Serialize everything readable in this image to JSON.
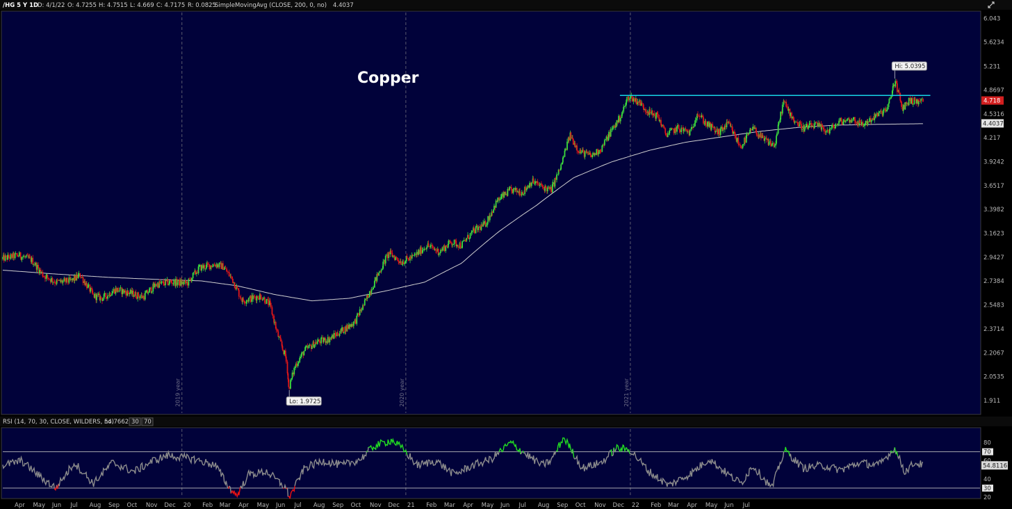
{
  "header": {
    "symbol": "/HG 5 Y 1D",
    "date": "D: 4/1/22",
    "open": "O: 4.7255",
    "high": "H: 4.7515",
    "low": "L: 4.669",
    "close": "C: 4.7175",
    "range": "R: 0.0825",
    "study": "SimpleMovingAvg (CLOSE, 200, 0, no)",
    "study_value": "4.4037"
  },
  "rsi_header": {
    "study": "RSI (14, 70, 30, CLOSE, WILDERS, no)",
    "value": "54.7662",
    "ob_box": "30",
    "os_box": "70"
  },
  "colors": {
    "background": "#000000",
    "plot_bg": "#01023a",
    "up": "#3ddc3d",
    "down": "#e01818",
    "sma": "#cfcfcf",
    "resistance": "#17d4e6",
    "rsi_line": "#8c8c8c",
    "rsi_ob": "#22dd22",
    "rsi_os": "#ee1111",
    "last_price_tag": "#d31f1f"
  },
  "icons": {
    "settings": "expand-arrows-icon"
  },
  "chart_data": [
    {
      "type": "candlestick",
      "title": "Copper",
      "symbol": "/HG",
      "y_ticks": [
        6.043,
        5.6234,
        5.231,
        4.8697,
        4.5316,
        4.217,
        3.9242,
        3.6517,
        3.3982,
        3.1623,
        2.9427,
        2.7384,
        2.5483,
        2.3714,
        2.2067,
        2.0535,
        1.911
      ],
      "y_tick_labels": [
        "6.043",
        "5.6234",
        "5.231",
        "4.8697",
        "4.5316",
        "4.217",
        "3.9242",
        "3.6517",
        "3.3982",
        "3.1623",
        "2.9427",
        "2.7384",
        "2.5483",
        "2.3714",
        "2.2067",
        "2.0535",
        "1.911"
      ],
      "y_scale": "log",
      "ylim": [
        1.84,
        6.15
      ],
      "x_range": [
        "2018-03-15",
        "2022-07-25"
      ],
      "year_markers": [
        {
          "date": "2019-01-01",
          "label": "2019 year"
        },
        {
          "date": "2020-01-01",
          "label": "2020 year"
        },
        {
          "date": "2021-01-01",
          "label": "2021 year"
        }
      ],
      "x_month_labels": [
        {
          "date": "2018-04-01",
          "label": "Apr"
        },
        {
          "date": "2018-05-01",
          "label": "May"
        },
        {
          "date": "2018-06-01",
          "label": "Jun"
        },
        {
          "date": "2018-07-01",
          "label": "Jul"
        },
        {
          "date": "2018-08-01",
          "label": "Aug"
        },
        {
          "date": "2018-09-01",
          "label": "Sep"
        },
        {
          "date": "2018-10-01",
          "label": "Oct"
        },
        {
          "date": "2018-11-01",
          "label": "Nov"
        },
        {
          "date": "2018-12-01",
          "label": "Dec"
        },
        {
          "date": "2019-01-01",
          "label": "20"
        },
        {
          "date": "2019-02-01",
          "label": "Feb"
        },
        {
          "date": "2019-03-01",
          "label": "Mar"
        },
        {
          "date": "2019-04-01",
          "label": "Apr"
        },
        {
          "date": "2019-05-01",
          "label": "May"
        },
        {
          "date": "2019-06-01",
          "label": "Jun"
        },
        {
          "date": "2019-07-01",
          "label": "Jul"
        },
        {
          "date": "2019-08-01",
          "label": "Aug"
        },
        {
          "date": "2019-09-01",
          "label": "Sep"
        },
        {
          "date": "2019-10-01",
          "label": "Oct"
        },
        {
          "date": "2019-11-01",
          "label": "Nov"
        },
        {
          "date": "2019-12-01",
          "label": "Dec"
        },
        {
          "date": "2020-01-01",
          "label": "21"
        },
        {
          "date": "2020-02-01",
          "label": "Feb"
        },
        {
          "date": "2020-03-01",
          "label": "Mar"
        },
        {
          "date": "2020-04-01",
          "label": "Apr"
        },
        {
          "date": "2020-05-01",
          "label": "May"
        },
        {
          "date": "2020-06-01",
          "label": "Jun"
        },
        {
          "date": "2020-07-01",
          "label": "Jul"
        },
        {
          "date": "2020-08-01",
          "label": "Aug"
        },
        {
          "date": "2020-09-01",
          "label": "Sep"
        },
        {
          "date": "2020-10-01",
          "label": "Oct"
        },
        {
          "date": "2020-11-01",
          "label": "Nov"
        },
        {
          "date": "2020-12-01",
          "label": "Dec"
        },
        {
          "date": "2021-01-01",
          "label": "22"
        },
        {
          "date": "2021-02-01",
          "label": "Feb"
        },
        {
          "date": "2021-03-01",
          "label": "Mar"
        },
        {
          "date": "2021-04-01",
          "label": "Apr"
        },
        {
          "date": "2021-05-01",
          "label": "May"
        },
        {
          "date": "2021-06-01",
          "label": "Jun"
        },
        {
          "date": "2021-07-01",
          "label": "Jul"
        }
      ],
      "price_path": [
        [
          "2018-03-15",
          2.93
        ],
        [
          "2018-04-10",
          2.96
        ],
        [
          "2018-05-01",
          2.92
        ],
        [
          "2018-05-20",
          2.79
        ],
        [
          "2018-06-10",
          2.73
        ],
        [
          "2018-07-05",
          2.74
        ],
        [
          "2018-07-20",
          2.79
        ],
        [
          "2018-08-10",
          2.62
        ],
        [
          "2018-08-25",
          2.6
        ],
        [
          "2018-09-15",
          2.67
        ],
        [
          "2018-10-10",
          2.64
        ],
        [
          "2018-10-30",
          2.61
        ],
        [
          "2018-11-20",
          2.71
        ],
        [
          "2018-12-15",
          2.73
        ],
        [
          "2019-01-10",
          2.72
        ],
        [
          "2019-01-30",
          2.85
        ],
        [
          "2019-02-25",
          2.88
        ],
        [
          "2019-03-10",
          2.86
        ],
        [
          "2019-03-25",
          2.75
        ],
        [
          "2019-04-10",
          2.58
        ],
        [
          "2019-04-25",
          2.6
        ],
        [
          "2019-05-10",
          2.62
        ],
        [
          "2019-05-25",
          2.55
        ],
        [
          "2019-06-05",
          2.35
        ],
        [
          "2019-06-20",
          2.17
        ],
        [
          "2019-06-25",
          1.98
        ],
        [
          "2019-07-05",
          2.12
        ],
        [
          "2019-07-20",
          2.22
        ],
        [
          "2019-08-10",
          2.28
        ],
        [
          "2019-08-30",
          2.3
        ],
        [
          "2019-09-20",
          2.36
        ],
        [
          "2019-10-10",
          2.42
        ],
        [
          "2019-10-25",
          2.55
        ],
        [
          "2019-11-15",
          2.77
        ],
        [
          "2019-12-05",
          2.98
        ],
        [
          "2019-12-25",
          2.9
        ],
        [
          "2020-01-15",
          2.95
        ],
        [
          "2020-02-05",
          3.05
        ],
        [
          "2020-02-25",
          2.99
        ],
        [
          "2020-03-15",
          3.08
        ],
        [
          "2020-04-01",
          3.05
        ],
        [
          "2020-04-20",
          3.18
        ],
        [
          "2020-05-10",
          3.25
        ],
        [
          "2020-05-30",
          3.49
        ],
        [
          "2020-06-20",
          3.6
        ],
        [
          "2020-07-10",
          3.58
        ],
        [
          "2020-07-25",
          3.7
        ],
        [
          "2020-08-10",
          3.64
        ],
        [
          "2020-08-25",
          3.6
        ],
        [
          "2020-09-10",
          3.86
        ],
        [
          "2020-09-25",
          4.25
        ],
        [
          "2020-10-10",
          4.05
        ],
        [
          "2020-10-30",
          3.99
        ],
        [
          "2020-11-15",
          4.08
        ],
        [
          "2020-12-01",
          4.3
        ],
        [
          "2020-12-15",
          4.47
        ],
        [
          "2020-12-30",
          4.78
        ],
        [
          "2021-01-15",
          4.7
        ],
        [
          "2021-02-01",
          4.55
        ],
        [
          "2021-02-15",
          4.5
        ],
        [
          "2021-02-28",
          4.26
        ],
        [
          "2021-03-20",
          4.34
        ],
        [
          "2021-04-10",
          4.28
        ],
        [
          "2021-04-20",
          4.55
        ],
        [
          "2021-05-05",
          4.4
        ],
        [
          "2021-05-25",
          4.28
        ],
        [
          "2021-06-10",
          4.4
        ],
        [
          "2021-06-30",
          4.1
        ],
        [
          "2021-07-20",
          4.34
        ],
        [
          "2021-08-05",
          4.2
        ],
        [
          "2021-08-25",
          4.12
        ],
        [
          "2021-09-08",
          4.7
        ],
        [
          "2021-09-25",
          4.45
        ],
        [
          "2021-10-10",
          4.34
        ],
        [
          "2021-10-30",
          4.38
        ],
        [
          "2021-11-20",
          4.3
        ],
        [
          "2021-12-10",
          4.43
        ],
        [
          "2021-12-30",
          4.46
        ],
        [
          "2022-01-15",
          4.38
        ],
        [
          "2022-02-05",
          4.5
        ],
        [
          "2022-02-25",
          4.6
        ],
        [
          "2022-03-05",
          4.9
        ],
        [
          "2022-03-10",
          5.0
        ],
        [
          "2022-03-20",
          4.6
        ],
        [
          "2022-04-01",
          4.72
        ],
        [
          "2022-04-15",
          4.7
        ],
        [
          "2022-04-25",
          4.72
        ]
      ],
      "sma_200": [
        [
          "2018-03-15",
          2.83
        ],
        [
          "2018-06-01",
          2.8
        ],
        [
          "2018-09-01",
          2.77
        ],
        [
          "2018-12-01",
          2.75
        ],
        [
          "2019-02-01",
          2.74
        ],
        [
          "2019-04-01",
          2.7
        ],
        [
          "2019-06-01",
          2.63
        ],
        [
          "2019-08-01",
          2.58
        ],
        [
          "2019-10-01",
          2.6
        ],
        [
          "2019-12-01",
          2.66
        ],
        [
          "2020-02-01",
          2.73
        ],
        [
          "2020-04-01",
          2.89
        ],
        [
          "2020-06-01",
          3.18
        ],
        [
          "2020-08-01",
          3.44
        ],
        [
          "2020-10-01",
          3.74
        ],
        [
          "2020-12-01",
          3.92
        ],
        [
          "2021-02-01",
          4.06
        ],
        [
          "2021-04-01",
          4.16
        ],
        [
          "2021-06-01",
          4.23
        ],
        [
          "2021-08-01",
          4.3
        ],
        [
          "2021-10-01",
          4.35
        ],
        [
          "2021-12-01",
          4.38
        ],
        [
          "2022-02-01",
          4.39
        ],
        [
          "2022-04-25",
          4.4
        ]
      ],
      "resistance_line": {
        "from": "2020-12-15",
        "to": "2022-05-05",
        "value": 4.79
      },
      "annotations": [
        {
          "label": "Hi: 5.0395",
          "date": "2022-03-08",
          "value": 5.0395
        },
        {
          "label": "Lo: 1.9725",
          "date": "2019-06-25",
          "value": 1.9725
        }
      ],
      "last_price": {
        "label": "4.718",
        "value": 4.718
      },
      "sma_last": {
        "label": "4.4037",
        "value": 4.4037
      }
    },
    {
      "type": "line",
      "title": "RSI (14, 70, 30, CLOSE, WILDERS, no)",
      "ylim": [
        20,
        95
      ],
      "y_tick_labels": [
        "80",
        "70",
        "60",
        "40",
        "30",
        "20"
      ],
      "y_ticks": [
        80,
        70,
        60,
        40,
        30,
        20
      ],
      "levels": [
        70,
        30
      ],
      "last_value_label": "54.8116",
      "rsi_path": [
        [
          "2018-03-15",
          55
        ],
        [
          "2018-04-15",
          60
        ],
        [
          "2018-05-20",
          40
        ],
        [
          "2018-06-10",
          30
        ],
        [
          "2018-07-10",
          58
        ],
        [
          "2018-08-10",
          35
        ],
        [
          "2018-09-10",
          58
        ],
        [
          "2018-10-15",
          48
        ],
        [
          "2018-11-15",
          60
        ],
        [
          "2018-12-10",
          66
        ],
        [
          "2019-01-20",
          62
        ],
        [
          "2019-02-25",
          55
        ],
        [
          "2019-03-20",
          30
        ],
        [
          "2019-04-01",
          22
        ],
        [
          "2019-04-20",
          45
        ],
        [
          "2019-05-20",
          48
        ],
        [
          "2019-06-20",
          30
        ],
        [
          "2019-06-26",
          20
        ],
        [
          "2019-07-20",
          52
        ],
        [
          "2019-08-20",
          60
        ],
        [
          "2019-09-20",
          55
        ],
        [
          "2019-10-20",
          62
        ],
        [
          "2019-11-10",
          76
        ],
        [
          "2019-12-10",
          83
        ],
        [
          "2020-01-01",
          70
        ],
        [
          "2020-01-20",
          55
        ],
        [
          "2020-02-20",
          60
        ],
        [
          "2020-03-20",
          45
        ],
        [
          "2020-04-20",
          55
        ],
        [
          "2020-05-20",
          62
        ],
        [
          "2020-06-20",
          80
        ],
        [
          "2020-07-10",
          70
        ],
        [
          "2020-08-10",
          55
        ],
        [
          "2020-08-25",
          60
        ],
        [
          "2020-09-15",
          86
        ],
        [
          "2020-10-15",
          52
        ],
        [
          "2020-11-15",
          58
        ],
        [
          "2020-12-10",
          74
        ],
        [
          "2021-01-01",
          72
        ],
        [
          "2021-02-01",
          48
        ],
        [
          "2021-03-05",
          33
        ],
        [
          "2021-04-10",
          46
        ],
        [
          "2021-05-10",
          62
        ],
        [
          "2021-06-10",
          45
        ],
        [
          "2021-07-01",
          35
        ],
        [
          "2021-07-20",
          55
        ],
        [
          "2021-08-20",
          30
        ],
        [
          "2021-09-10",
          72
        ],
        [
          "2021-10-10",
          52
        ],
        [
          "2021-11-10",
          55
        ],
        [
          "2021-12-10",
          50
        ],
        [
          "2022-01-10",
          58
        ],
        [
          "2022-02-10",
          55
        ],
        [
          "2022-03-08",
          74
        ],
        [
          "2022-03-25",
          48
        ],
        [
          "2022-04-10",
          58
        ],
        [
          "2022-04-25",
          55
        ]
      ]
    }
  ]
}
